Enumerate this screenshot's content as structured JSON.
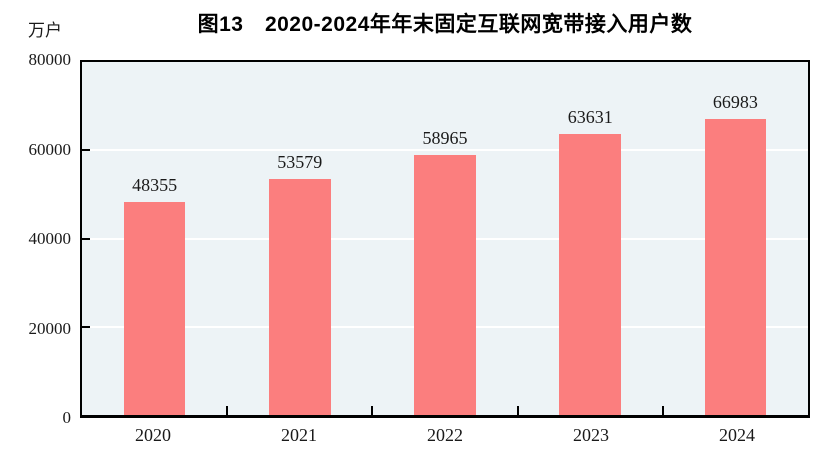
{
  "figure": {
    "title": "图13　2020-2024年年末固定互联网宽带接入用户数",
    "unit_label": "万户"
  },
  "chart_data": {
    "type": "bar",
    "title": "图13　2020-2024年年末固定互联网宽带接入用户数",
    "xlabel": "",
    "ylabel": "万户",
    "categories": [
      "2020",
      "2021",
      "2022",
      "2023",
      "2024"
    ],
    "values": [
      48355,
      53579,
      58965,
      63631,
      66983
    ],
    "data_labels": [
      "48355",
      "53579",
      "58965",
      "63631",
      "66983"
    ],
    "ylim": [
      0,
      80000
    ],
    "yticks": [
      0,
      20000,
      40000,
      60000,
      80000
    ],
    "ytick_labels": [
      "0",
      "20000",
      "40000",
      "60000",
      "80000"
    ],
    "grid": "horizontal",
    "legend": "none",
    "bar_width_fraction": 0.425,
    "colors": {
      "bar": "#FB7E7E",
      "plot_background": "#EDF3F6",
      "gridline": "#FFFFFF",
      "axis": "#000000",
      "text": "#1A1A1A"
    }
  }
}
